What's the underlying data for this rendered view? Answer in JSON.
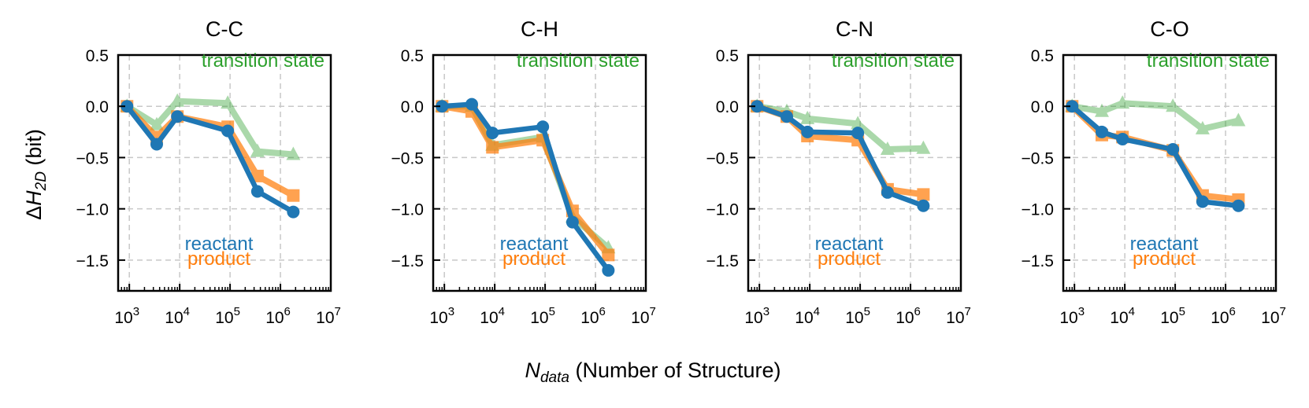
{
  "colors": {
    "reactant": "#1f77b4",
    "product": "#ff7f0e",
    "transition_state": "#2ca02c",
    "grid": "#c8c8c8",
    "axis": "#000000"
  },
  "figure": {
    "ylabel_parts": {
      "delta": "Δ",
      "var": "H",
      "sub": "2D",
      "unit": " (bit)"
    },
    "xlabel_parts": {
      "var": "N",
      "sub": "data",
      "rest": " (Number of Structure)"
    }
  },
  "chart_data": [
    {
      "type": "line",
      "title": "C-C",
      "xscale": "log",
      "xlim": [
        600,
        10000000
      ],
      "ylim": [
        -1.8,
        0.5
      ],
      "yticks": [
        0.5,
        0.0,
        -0.5,
        -1.0,
        -1.5
      ],
      "ytick_labels": [
        "0.5",
        "0.0",
        "−0.5",
        "−1.0",
        "−1.5"
      ],
      "xticks": [
        1000,
        10000,
        100000,
        1000000,
        10000000
      ],
      "xtick_labels": [
        {
          "base": "10",
          "exp": "3"
        },
        {
          "base": "10",
          "exp": "4"
        },
        {
          "base": "10",
          "exp": "5"
        },
        {
          "base": "10",
          "exp": "6"
        },
        {
          "base": "10",
          "exp": "7"
        }
      ],
      "grid": true,
      "annotations": {
        "transition": "transition state",
        "reactant": "reactant",
        "product": "product"
      },
      "series": [
        {
          "name": "transition state",
          "marker": "triangle",
          "x": [
            900,
            3500,
            9000,
            90000,
            350000,
            1800000
          ],
          "y": [
            0.0,
            -0.18,
            0.05,
            0.03,
            -0.44,
            -0.47
          ]
        },
        {
          "name": "product",
          "marker": "square",
          "x": [
            900,
            3500,
            9000,
            90000,
            350000,
            1800000
          ],
          "y": [
            0.0,
            -0.3,
            -0.1,
            -0.2,
            -0.68,
            -0.87
          ]
        },
        {
          "name": "reactant",
          "marker": "circle",
          "x": [
            900,
            3500,
            9000,
            90000,
            350000,
            1800000
          ],
          "y": [
            0.0,
            -0.37,
            -0.1,
            -0.24,
            -0.83,
            -1.03
          ]
        }
      ]
    },
    {
      "type": "line",
      "title": "C-H",
      "xscale": "log",
      "xlim": [
        600,
        10000000
      ],
      "ylim": [
        -1.8,
        0.5
      ],
      "yticks": [
        0.5,
        0.0,
        -0.5,
        -1.0,
        -1.5
      ],
      "ytick_labels": [
        "0.5",
        "0.0",
        "−0.5",
        "−1.0",
        "−1.5"
      ],
      "xticks": [
        1000,
        10000,
        100000,
        1000000,
        10000000
      ],
      "xtick_labels": [
        {
          "base": "10",
          "exp": "3"
        },
        {
          "base": "10",
          "exp": "4"
        },
        {
          "base": "10",
          "exp": "5"
        },
        {
          "base": "10",
          "exp": "6"
        },
        {
          "base": "10",
          "exp": "7"
        }
      ],
      "grid": true,
      "annotations": {
        "transition": "transition state",
        "reactant": "reactant",
        "product": "product"
      },
      "series": [
        {
          "name": "transition state",
          "marker": "triangle",
          "x": [
            900,
            3500,
            9000,
            90000,
            350000,
            1800000
          ],
          "y": [
            0.0,
            0.0,
            -0.38,
            -0.3,
            -1.08,
            -1.38
          ]
        },
        {
          "name": "product",
          "marker": "square",
          "x": [
            900,
            3500,
            9000,
            90000,
            350000,
            1800000
          ],
          "y": [
            0.0,
            -0.05,
            -0.4,
            -0.33,
            -1.02,
            -1.45
          ]
        },
        {
          "name": "reactant",
          "marker": "circle",
          "x": [
            900,
            3500,
            9000,
            90000,
            350000,
            1800000
          ],
          "y": [
            0.0,
            0.02,
            -0.26,
            -0.2,
            -1.13,
            -1.6
          ]
        }
      ]
    },
    {
      "type": "line",
      "title": "C-N",
      "xscale": "log",
      "xlim": [
        600,
        10000000
      ],
      "ylim": [
        -1.8,
        0.5
      ],
      "yticks": [
        0.5,
        0.0,
        -0.5,
        -1.0,
        -1.5
      ],
      "ytick_labels": [
        "0.5",
        "0.0",
        "−0.5",
        "−1.0",
        "−1.5"
      ],
      "xticks": [
        1000,
        10000,
        100000,
        1000000,
        10000000
      ],
      "xtick_labels": [
        {
          "base": "10",
          "exp": "3"
        },
        {
          "base": "10",
          "exp": "4"
        },
        {
          "base": "10",
          "exp": "5"
        },
        {
          "base": "10",
          "exp": "6"
        },
        {
          "base": "10",
          "exp": "7"
        }
      ],
      "grid": true,
      "annotations": {
        "transition": "transition state",
        "reactant": "reactant",
        "product": "product"
      },
      "series": [
        {
          "name": "transition state",
          "marker": "triangle",
          "x": [
            900,
            3500,
            9000,
            90000,
            350000,
            1800000
          ],
          "y": [
            0.0,
            -0.05,
            -0.12,
            -0.17,
            -0.42,
            -0.41
          ]
        },
        {
          "name": "product",
          "marker": "square",
          "x": [
            900,
            3500,
            9000,
            90000,
            350000,
            1800000
          ],
          "y": [
            0.0,
            -0.1,
            -0.29,
            -0.33,
            -0.81,
            -0.86
          ]
        },
        {
          "name": "reactant",
          "marker": "circle",
          "x": [
            900,
            3500,
            9000,
            90000,
            350000,
            1800000
          ],
          "y": [
            0.0,
            -0.1,
            -0.25,
            -0.26,
            -0.84,
            -0.97
          ]
        }
      ]
    },
    {
      "type": "line",
      "title": "C-O",
      "xscale": "log",
      "xlim": [
        600,
        10000000
      ],
      "ylim": [
        -1.8,
        0.5
      ],
      "yticks": [
        0.5,
        0.0,
        -0.5,
        -1.0,
        -1.5
      ],
      "ytick_labels": [
        "0.5",
        "0.0",
        "−0.5",
        "−1.0",
        "−1.5"
      ],
      "xticks": [
        1000,
        10000,
        100000,
        1000000,
        10000000
      ],
      "xtick_labels": [
        {
          "base": "10",
          "exp": "3"
        },
        {
          "base": "10",
          "exp": "4"
        },
        {
          "base": "10",
          "exp": "5"
        },
        {
          "base": "10",
          "exp": "6"
        },
        {
          "base": "10",
          "exp": "7"
        }
      ],
      "grid": true,
      "annotations": {
        "transition": "transition state",
        "reactant": "reactant",
        "product": "product"
      },
      "series": [
        {
          "name": "transition state",
          "marker": "triangle",
          "x": [
            900,
            3500,
            9000,
            90000,
            350000,
            1800000
          ],
          "y": [
            0.0,
            -0.05,
            0.03,
            0.0,
            -0.22,
            -0.14
          ]
        },
        {
          "name": "product",
          "marker": "square",
          "x": [
            900,
            3500,
            9000,
            90000,
            350000,
            1800000
          ],
          "y": [
            0.0,
            -0.28,
            -0.3,
            -0.43,
            -0.87,
            -0.91
          ]
        },
        {
          "name": "reactant",
          "marker": "circle",
          "x": [
            900,
            3500,
            9000,
            90000,
            350000,
            1800000
          ],
          "y": [
            0.0,
            -0.25,
            -0.32,
            -0.42,
            -0.93,
            -0.97
          ]
        }
      ]
    }
  ]
}
